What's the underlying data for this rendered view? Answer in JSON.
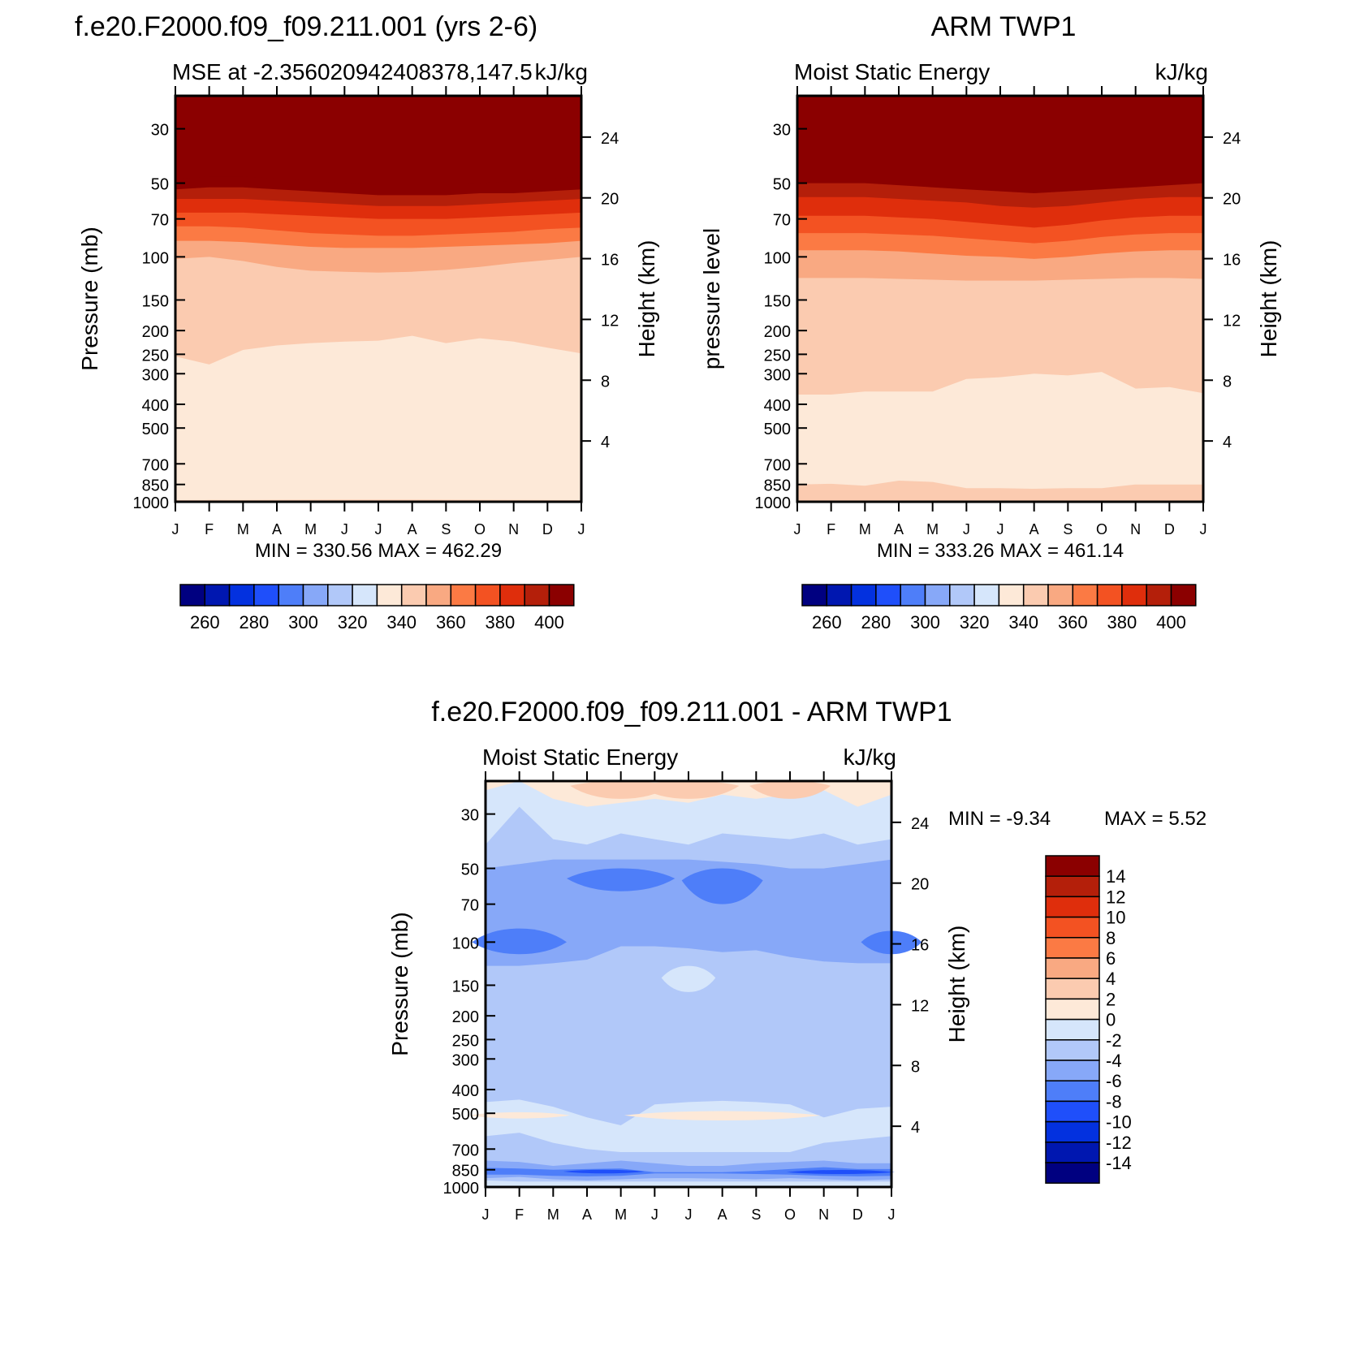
{
  "months": [
    "J",
    "F",
    "M",
    "A",
    "M",
    "J",
    "J",
    "A",
    "S",
    "O",
    "N",
    "D",
    "J"
  ],
  "pressure_ticks": [
    "30",
    "50",
    "70",
    "100",
    "150",
    "200",
    "250",
    "300",
    "400",
    "500",
    "700",
    "850",
    "1000"
  ],
  "pressure_values": [
    30,
    50,
    70,
    100,
    150,
    200,
    250,
    300,
    400,
    500,
    700,
    850,
    1000
  ],
  "height_ticks": [
    "24",
    "20",
    "16",
    "12",
    "8",
    "4"
  ],
  "height_values_km": [
    24,
    20,
    16,
    12,
    8,
    4
  ],
  "colors": {
    "mse": [
      "#000080",
      "#0017b0",
      "#0331df",
      "#1f4ffa",
      "#4e7ef9",
      "#87a8f8",
      "#b1c8f9",
      "#d6e6fb",
      "#fde9d8",
      "#fbcbb0",
      "#f9a982",
      "#fb7a44",
      "#f35222",
      "#df2e0c",
      "#b41f0a",
      "#8b0000"
    ],
    "diff": [
      "#000080",
      "#0017b0",
      "#0331df",
      "#1f4ffa",
      "#4e7ef9",
      "#87a8f8",
      "#b1c8f9",
      "#d6e6fb",
      "#fde9d8",
      "#fbcbb0",
      "#f9a982",
      "#fb7a44",
      "#f35222",
      "#df2e0c",
      "#b41f0a",
      "#8b0000"
    ]
  },
  "panels": {
    "model": {
      "main_title": "f.e20.F2000.f09_f09.211.001 (yrs 2-6)",
      "subtitle_left": "MSE at -2.356020942408378,147.5",
      "subtitle_right": "kJ/kg",
      "ylabel": "Pressure (mb)",
      "ylabel_right": "Height (km)",
      "minmax": "MIN = 330.56 MAX = 462.29",
      "colorbar_labels": [
        "260",
        "280",
        "300",
        "320",
        "340",
        "360",
        "380",
        "400"
      ]
    },
    "obs": {
      "main_title": "ARM TWP1",
      "subtitle_left": "Moist Static Energy",
      "subtitle_right": "kJ/kg",
      "ylabel": "pressure level",
      "ylabel_right": "Height (km)",
      "minmax": "MIN = 333.26 MAX = 461.14",
      "colorbar_labels": [
        "260",
        "280",
        "300",
        "320",
        "340",
        "360",
        "380",
        "400"
      ]
    },
    "diff": {
      "main_title": "f.e20.F2000.f09_f09.211.001 - ARM TWP1",
      "subtitle_left": "Moist Static Energy",
      "subtitle_right": "kJ/kg",
      "ylabel": "Pressure (mb)",
      "ylabel_right": "Height (km)",
      "minmax_min": "MIN = -9.34",
      "minmax_max": "MAX = 5.52",
      "colorbar_labels": [
        "14",
        "12",
        "10",
        "8",
        "6",
        "4",
        "2",
        "0",
        "-2",
        "-4",
        "-6",
        "-8",
        "-10",
        "-12",
        "-14"
      ]
    }
  },
  "chart_data": [
    {
      "type": "heatmap",
      "title": "f.e20.F2000.f09_f09.211.001 (yrs 2-6)",
      "subtitle": "MSE at -2.356020942408378,147.5",
      "units": "kJ/kg",
      "x": [
        "J",
        "F",
        "M",
        "A",
        "M",
        "J",
        "J",
        "A",
        "S",
        "O",
        "N",
        "D",
        "J"
      ],
      "ylabel": "Pressure (mb)",
      "yscale": "log",
      "ylim": [
        1000,
        20
      ],
      "levels": [
        250,
        260,
        270,
        280,
        290,
        300,
        310,
        320,
        330,
        340,
        350,
        360,
        370,
        380,
        390,
        400,
        410
      ],
      "contour_boundaries_mb": [
        {
          "level": 340,
          "p": [
            255,
            275,
            240,
            230,
            225,
            222,
            220,
            210,
            225,
            215,
            222,
            235,
            248
          ]
        },
        {
          "level": 350,
          "p": [
            102,
            100,
            104,
            110,
            114,
            115,
            116,
            115,
            113,
            110,
            106,
            103,
            100
          ]
        },
        {
          "level": 360,
          "p": [
            86,
            86,
            87,
            89,
            91,
            92,
            92,
            92,
            91,
            90,
            89,
            88,
            86
          ]
        },
        {
          "level": 370,
          "p": [
            75,
            75,
            76,
            78,
            80,
            81,
            82,
            82,
            81,
            80,
            79,
            77,
            76
          ]
        },
        {
          "level": 380,
          "p": [
            66,
            66,
            66,
            67,
            68,
            69,
            70,
            70,
            70,
            69,
            68,
            67,
            66
          ]
        },
        {
          "level": 390,
          "p": [
            58,
            58,
            58,
            59,
            60,
            61,
            62,
            62,
            62,
            61,
            60,
            59,
            58
          ]
        },
        {
          "level": 400,
          "p": [
            53,
            52,
            52,
            53,
            54,
            55,
            56,
            56,
            56,
            55,
            55,
            54,
            53
          ]
        }
      ],
      "min": 330.56,
      "max": 462.29
    },
    {
      "type": "heatmap",
      "title": "ARM TWP1",
      "subtitle": "Moist Static Energy",
      "units": "kJ/kg",
      "x": [
        "J",
        "F",
        "M",
        "A",
        "M",
        "J",
        "J",
        "A",
        "S",
        "O",
        "N",
        "D",
        "J"
      ],
      "ylabel": "pressure level",
      "yscale": "log",
      "ylim": [
        1000,
        20
      ],
      "levels": [
        250,
        260,
        270,
        280,
        290,
        300,
        310,
        320,
        330,
        340,
        350,
        360,
        370,
        380,
        390,
        400,
        410
      ],
      "contour_boundaries_mb": [
        {
          "level": 340,
          "p": [
            850,
            845,
            860,
            820,
            830,
            880,
            880,
            885,
            880,
            880,
            850,
            850,
            850
          ]
        },
        {
          "level": 350,
          "p": [
            365,
            365,
            355,
            355,
            355,
            315,
            310,
            300,
            305,
            295,
            345,
            340,
            360
          ]
        },
        {
          "level": 360,
          "p": [
            122,
            122,
            122,
            123,
            124,
            125,
            125,
            125,
            124,
            123,
            122,
            122,
            123
          ]
        },
        {
          "level": 370,
          "p": [
            94,
            94,
            94,
            95,
            97,
            99,
            100,
            102,
            100,
            97,
            95,
            94,
            94
          ]
        },
        {
          "level": 380,
          "p": [
            80,
            80,
            80,
            81,
            82,
            84,
            86,
            88,
            86,
            83,
            81,
            80,
            80
          ]
        },
        {
          "level": 390,
          "p": [
            68,
            68,
            68,
            69,
            70,
            72,
            74,
            76,
            74,
            71,
            69,
            68,
            68
          ]
        },
        {
          "level": 400,
          "p": [
            57,
            57,
            57,
            58,
            59,
            60,
            62,
            63,
            62,
            60,
            58,
            57,
            57
          ]
        }
      ],
      "min": 333.26,
      "max": 461.14
    },
    {
      "type": "heatmap",
      "title": "f.e20.F2000.f09_f09.211.001 - ARM TWP1",
      "subtitle": "Moist Static Energy",
      "units": "kJ/kg",
      "x": [
        "J",
        "F",
        "M",
        "A",
        "M",
        "J",
        "J",
        "A",
        "S",
        "O",
        "N",
        "D",
        "J"
      ],
      "ylabel": "Pressure (mb)",
      "yscale": "log",
      "ylim": [
        1000,
        20
      ],
      "levels": [
        -14,
        -12,
        -10,
        -8,
        -6,
        -4,
        -2,
        0,
        2,
        4,
        6,
        8,
        10,
        12,
        14
      ],
      "regions": [
        {
          "value_range": [
            -4,
            -2
          ],
          "extent": "dominant 150-400 mb and 850-1000 mb"
        },
        {
          "value_range": [
            -6,
            -4
          ],
          "extent": "50-120 mb band"
        },
        {
          "value_range": [
            -8,
            -6
          ],
          "extent": "near 55 mb (Apr, Aug) and 100 mb (Jan, Dec)"
        },
        {
          "value_range": [
            -10,
            -8
          ],
          "extent": "near 870 mb (Apr, Nov-Dec)"
        },
        {
          "value_range": [
            0,
            2
          ],
          "extent": "near 500 mb (Feb-Mar, Jun-Sep) and above 30 mb"
        },
        {
          "value_range": [
            2,
            4
          ],
          "extent": "above 25 mb (Apr-Jul)"
        }
      ],
      "min": -9.34,
      "max": 5.52
    }
  ]
}
